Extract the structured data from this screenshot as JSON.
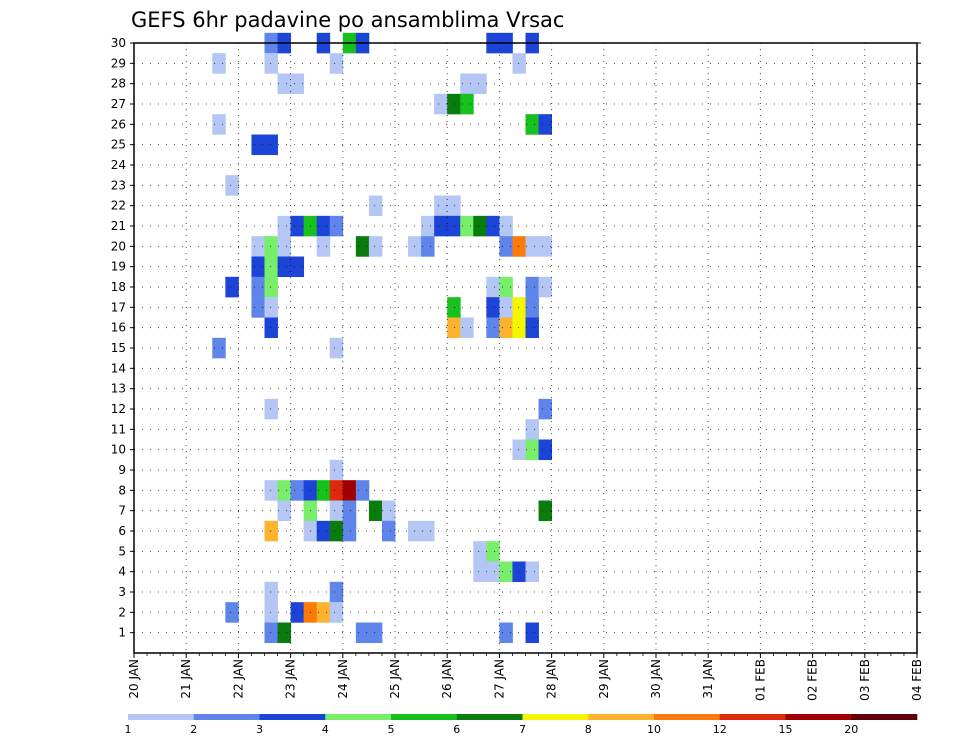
{
  "chart_data": {
    "type": "heatmap",
    "title": "GEFS 6hr padavine po ansamblima Vrsac",
    "x_tick_labels": [
      "20 JAN",
      "21 JAN",
      "22 JAN",
      "23 JAN",
      "24 JAN",
      "25 JAN",
      "26 JAN",
      "27 JAN",
      "28 JAN",
      "29 JAN",
      "30 JAN",
      "31 JAN",
      "01 FEB",
      "02 FEB",
      "03 FEB",
      "04 FEB"
    ],
    "y_tick_labels": [
      "1",
      "2",
      "3",
      "4",
      "5",
      "6",
      "7",
      "8",
      "9",
      "10",
      "11",
      "12",
      "13",
      "14",
      "15",
      "16",
      "17",
      "18",
      "19",
      "20",
      "21",
      "22",
      "23",
      "24",
      "25",
      "26",
      "27",
      "28",
      "29",
      "30"
    ],
    "x_range_steps": [
      0,
      60
    ],
    "y_range": [
      0,
      30
    ],
    "grid": true,
    "colorbar": {
      "labels": [
        "1",
        "2",
        "3",
        "4",
        "5",
        "6",
        "7",
        "8",
        "10",
        "12",
        "15",
        "20"
      ],
      "colors": [
        "#b4c6f4",
        "#5f85ea",
        "#1c44d7",
        "#79ee6a",
        "#17c01c",
        "#0a7b0d",
        "#f5f500",
        "#fdb32e",
        "#fb7a0a",
        "#dd2a0c",
        "#a00004",
        "#5e0006"
      ]
    },
    "cells": [
      [
        30,
        10,
        1
      ],
      [
        30,
        11,
        2
      ],
      [
        30,
        14,
        2
      ],
      [
        30,
        16,
        4
      ],
      [
        30,
        17,
        2
      ],
      [
        30,
        27,
        2
      ],
      [
        30,
        28,
        2
      ],
      [
        30,
        30,
        2
      ],
      [
        29,
        6,
        0
      ],
      [
        29,
        10,
        0
      ],
      [
        29,
        15,
        0
      ],
      [
        29,
        29,
        0
      ],
      [
        28,
        11,
        0
      ],
      [
        28,
        12,
        0
      ],
      [
        28,
        25,
        0
      ],
      [
        28,
        26,
        0
      ],
      [
        27,
        23,
        0
      ],
      [
        27,
        24,
        5
      ],
      [
        27,
        25,
        4
      ],
      [
        26,
        6,
        0
      ],
      [
        26,
        30,
        4
      ],
      [
        26,
        31,
        2
      ],
      [
        25,
        9,
        2
      ],
      [
        25,
        10,
        2
      ],
      [
        23,
        7,
        0
      ],
      [
        22,
        18,
        0
      ],
      [
        22,
        23,
        0
      ],
      [
        22,
        24,
        0
      ],
      [
        21,
        11,
        0
      ],
      [
        21,
        12,
        2
      ],
      [
        21,
        13,
        4
      ],
      [
        21,
        14,
        2
      ],
      [
        21,
        15,
        1
      ],
      [
        21,
        22,
        0
      ],
      [
        21,
        23,
        2
      ],
      [
        21,
        24,
        2
      ],
      [
        21,
        25,
        3
      ],
      [
        21,
        26,
        5
      ],
      [
        21,
        27,
        2
      ],
      [
        21,
        28,
        0
      ],
      [
        20,
        9,
        0
      ],
      [
        20,
        10,
        3
      ],
      [
        20,
        11,
        0
      ],
      [
        20,
        14,
        0
      ],
      [
        20,
        17,
        5
      ],
      [
        20,
        18,
        0
      ],
      [
        20,
        21,
        0
      ],
      [
        20,
        22,
        1
      ],
      [
        20,
        28,
        1
      ],
      [
        20,
        29,
        8
      ],
      [
        20,
        30,
        0
      ],
      [
        20,
        31,
        0
      ],
      [
        19,
        9,
        2
      ],
      [
        19,
        10,
        3
      ],
      [
        19,
        11,
        2
      ],
      [
        19,
        12,
        2
      ],
      [
        18,
        7,
        2
      ],
      [
        18,
        9,
        1
      ],
      [
        18,
        10,
        3
      ],
      [
        18,
        27,
        0
      ],
      [
        18,
        28,
        3
      ],
      [
        18,
        30,
        1
      ],
      [
        18,
        31,
        0
      ],
      [
        17,
        9,
        1
      ],
      [
        17,
        10,
        0
      ],
      [
        17,
        24,
        4
      ],
      [
        17,
        27,
        2
      ],
      [
        17,
        28,
        0
      ],
      [
        17,
        29,
        6
      ],
      [
        17,
        30,
        1
      ],
      [
        16,
        10,
        2
      ],
      [
        16,
        24,
        7
      ],
      [
        16,
        25,
        0
      ],
      [
        16,
        27,
        1
      ],
      [
        16,
        28,
        7
      ],
      [
        16,
        29,
        6
      ],
      [
        16,
        30,
        2
      ],
      [
        15,
        6,
        1
      ],
      [
        15,
        15,
        0
      ],
      [
        12,
        10,
        0
      ],
      [
        12,
        31,
        1
      ],
      [
        11,
        30,
        0
      ],
      [
        10,
        29,
        0
      ],
      [
        10,
        30,
        3
      ],
      [
        10,
        31,
        2
      ],
      [
        9,
        15,
        0
      ],
      [
        8,
        10,
        0
      ],
      [
        8,
        11,
        3
      ],
      [
        8,
        12,
        1
      ],
      [
        8,
        13,
        2
      ],
      [
        8,
        14,
        4
      ],
      [
        8,
        15,
        9
      ],
      [
        8,
        16,
        10
      ],
      [
        8,
        17,
        1
      ],
      [
        7,
        11,
        0
      ],
      [
        7,
        13,
        3
      ],
      [
        7,
        15,
        0
      ],
      [
        7,
        16,
        1
      ],
      [
        7,
        18,
        5
      ],
      [
        7,
        19,
        0
      ],
      [
        7,
        31,
        5
      ],
      [
        6,
        10,
        7
      ],
      [
        6,
        13,
        0
      ],
      [
        6,
        14,
        2
      ],
      [
        6,
        15,
        5
      ],
      [
        6,
        16,
        1
      ],
      [
        6,
        19,
        1
      ],
      [
        6,
        21,
        0
      ],
      [
        6,
        22,
        0
      ],
      [
        5,
        26,
        0
      ],
      [
        5,
        27,
        3
      ],
      [
        4,
        26,
        0
      ],
      [
        4,
        27,
        0
      ],
      [
        4,
        28,
        3
      ],
      [
        4,
        29,
        2
      ],
      [
        4,
        30,
        0
      ],
      [
        3,
        10,
        0
      ],
      [
        3,
        15,
        1
      ],
      [
        2,
        7,
        1
      ],
      [
        2,
        10,
        0
      ],
      [
        2,
        12,
        2
      ],
      [
        2,
        13,
        8
      ],
      [
        2,
        14,
        7
      ],
      [
        2,
        15,
        0
      ],
      [
        1,
        10,
        1
      ],
      [
        1,
        11,
        5
      ],
      [
        1,
        17,
        1
      ],
      [
        1,
        18,
        1
      ],
      [
        1,
        28,
        1
      ],
      [
        1,
        30,
        2
      ]
    ]
  }
}
